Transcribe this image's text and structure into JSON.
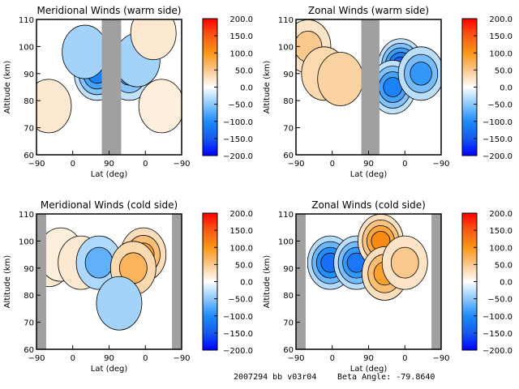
{
  "chart_data": [
    {
      "type": "heatmap",
      "title": "Meridional Winds (warm side)",
      "xlabel": "Lat (deg)",
      "ylabel": "Altitude (km)",
      "xtick_labels": [
        "-90",
        "0",
        "90",
        "0",
        "-90"
      ],
      "ylim": [
        60,
        110
      ],
      "yticks": [
        60,
        70,
        80,
        90,
        100,
        110
      ],
      "colorbar": {
        "range": [
          -200,
          200
        ],
        "tick_labels": [
          "200.0",
          "150.0",
          "100.0",
          "50.0",
          "0.0",
          "-50.0",
          "-100.0",
          "-150.0",
          "-200.0"
        ]
      },
      "gap_regions": [
        [
          72,
          120
        ]
      ],
      "blobs": [
        {
          "lat": -60,
          "alt": 78,
          "value": 20
        },
        {
          "lat": 50,
          "alt": 95,
          "value": -70
        },
        {
          "lat": 60,
          "alt": 90,
          "value": -110
        },
        {
          "lat": 30,
          "alt": 98,
          "value": -40
        },
        {
          "lat": 140,
          "alt": 90,
          "value": -80
        },
        {
          "lat": 160,
          "alt": 95,
          "value": -40
        },
        {
          "lat": 200,
          "alt": 105,
          "value": 20
        },
        {
          "lat": 220,
          "alt": 78,
          "value": 15
        }
      ]
    },
    {
      "type": "heatmap",
      "title": "Zonal Winds (warm side)",
      "xlabel": "Lat (deg)",
      "ylabel": "Altitude (km)",
      "xtick_labels": [
        "-90",
        "0",
        "90",
        "0",
        "-90"
      ],
      "ylim": [
        60,
        110
      ],
      "yticks": [
        60,
        70,
        80,
        90,
        100,
        110
      ],
      "colorbar": {
        "range": [
          -200,
          200
        ],
        "tick_labels": [
          "200.0",
          "150.0",
          "100.0",
          "50.0",
          "0.0",
          "-50.0",
          "-100.0",
          "-150.0",
          "-200.0"
        ]
      },
      "gap_regions": [
        [
          72,
          117
        ]
      ],
      "blobs": [
        {
          "lat": -60,
          "alt": 100,
          "value": 50
        },
        {
          "lat": -20,
          "alt": 90,
          "value": 35
        },
        {
          "lat": 20,
          "alt": 88,
          "value": 40
        },
        {
          "lat": 170,
          "alt": 93,
          "value": -140
        },
        {
          "lat": 150,
          "alt": 85,
          "value": -110
        },
        {
          "lat": 220,
          "alt": 90,
          "value": -90
        }
      ]
    },
    {
      "type": "heatmap",
      "title": "Meridional Winds (cold side)",
      "xlabel": "Lat (deg)",
      "ylabel": "Altitude (km)",
      "xtick_labels": [
        "-90",
        "0",
        "90",
        "0",
        "-90"
      ],
      "ylim": [
        60,
        110
      ],
      "yticks": [
        60,
        70,
        80,
        90,
        100,
        110
      ],
      "colorbar": {
        "range": [
          -200,
          200
        ],
        "tick_labels": [
          "200.0",
          "150.0",
          "100.0",
          "50.0",
          "0.0",
          "-50.0",
          "-100.0",
          "-150.0",
          "-200.0"
        ]
      },
      "gap_regions": [
        [
          -90,
          -66
        ],
        [
          246,
          270
        ]
      ],
      "blobs": [
        {
          "lat": -60,
          "alt": 93,
          "value": 20
        },
        {
          "lat": -30,
          "alt": 95,
          "value": 15
        },
        {
          "lat": 20,
          "alt": 92,
          "value": 20
        },
        {
          "lat": 65,
          "alt": 92,
          "value": -70
        },
        {
          "lat": 175,
          "alt": 95,
          "value": 90
        },
        {
          "lat": 150,
          "alt": 90,
          "value": 70
        },
        {
          "lat": 115,
          "alt": 77,
          "value": -40
        }
      ]
    },
    {
      "type": "heatmap",
      "title": "Zonal Winds (cold side)",
      "xlabel": "Lat (deg)",
      "ylabel": "Altitude (km)",
      "xtick_labels": [
        "-90",
        "0",
        "90",
        "0",
        "-90"
      ],
      "ylim": [
        60,
        110
      ],
      "yticks": [
        60,
        70,
        80,
        90,
        100,
        110
      ],
      "colorbar": {
        "range": [
          -200,
          200
        ],
        "tick_labels": [
          "200.0",
          "150.0",
          "100.0",
          "50.0",
          "0.0",
          "-50.0",
          "-100.0",
          "-150.0",
          "-200.0"
        ]
      },
      "gap_regions": [
        [
          -90,
          -66
        ],
        [
          246,
          270
        ]
      ],
      "blobs": [
        {
          "lat": -5,
          "alt": 92,
          "value": -130
        },
        {
          "lat": 60,
          "alt": 92,
          "value": -120
        },
        {
          "lat": 120,
          "alt": 100,
          "value": 110
        },
        {
          "lat": 130,
          "alt": 88,
          "value": 90
        },
        {
          "lat": 180,
          "alt": 92,
          "value": 50
        }
      ]
    }
  ],
  "footer": {
    "id_text": "2007294 bb v03r04",
    "beta_text": "Beta Angle: -79.8640"
  },
  "colors": {
    "gap": "#a0a0a0"
  }
}
